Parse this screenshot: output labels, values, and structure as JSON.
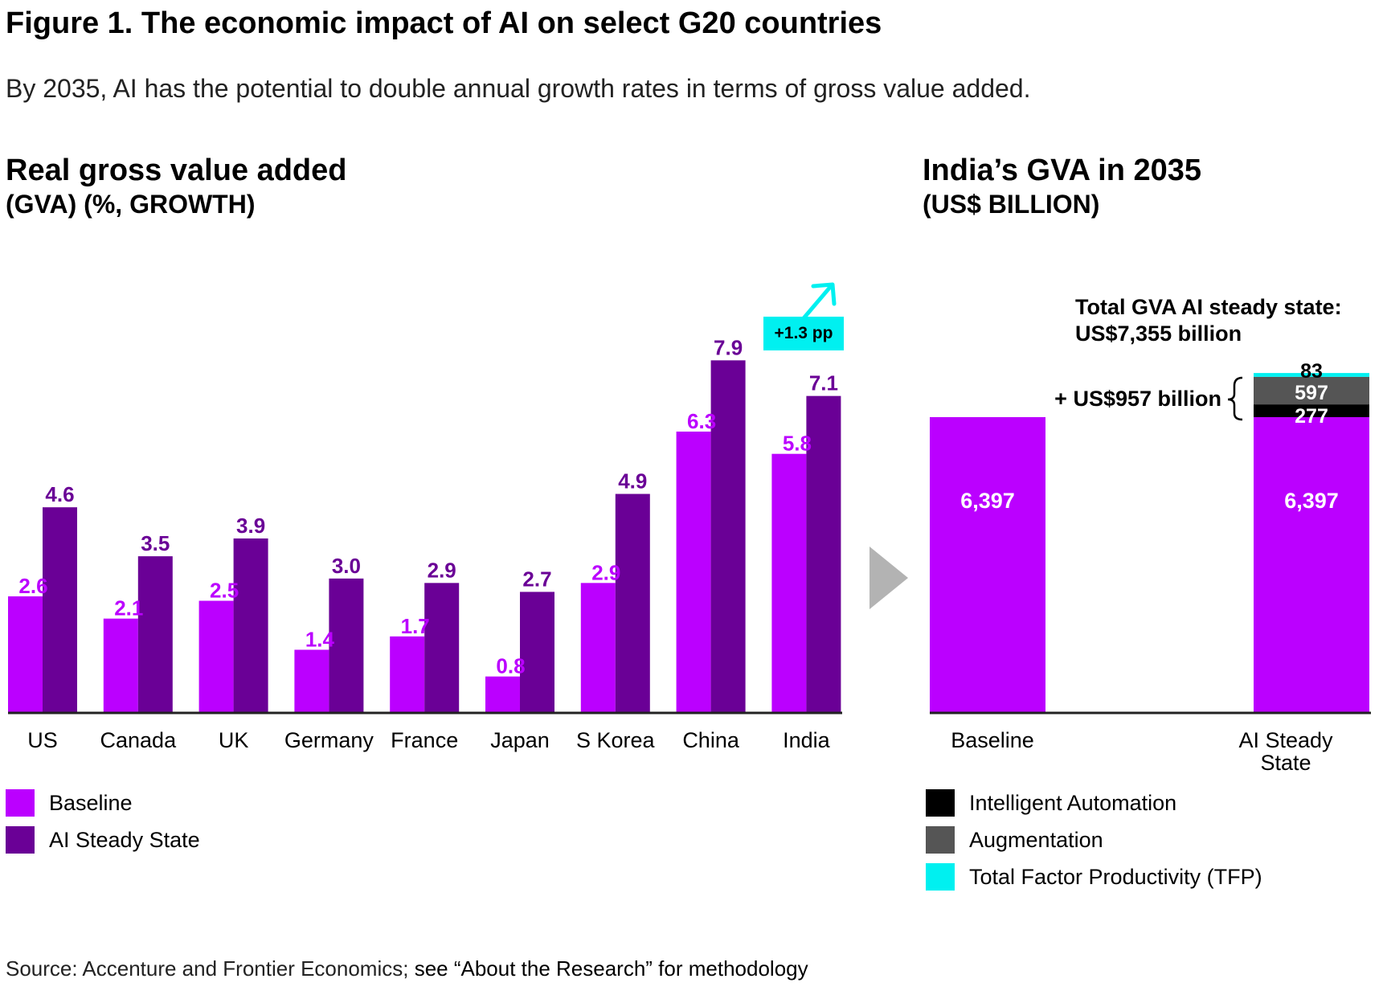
{
  "figure": {
    "title": "Figure 1. The economic impact of AI on select G20 countries",
    "subtitle": "By 2035, AI has the potential to double annual growth rates in terms of gross value added."
  },
  "colors": {
    "baseline": "#bb00ff",
    "ai_steady": "#6a0096",
    "intelligent_automation": "#000000",
    "augmentation": "#555555",
    "tfp": "#00f0f0",
    "arrow": "#b3b3b3"
  },
  "chart_data": [
    {
      "type": "bar",
      "title": "Real gross value added",
      "unit_label": "(GVA) (%, GROWTH)",
      "categories": [
        "US",
        "Canada",
        "UK",
        "Germany",
        "France",
        "Japan",
        "S Korea",
        "China",
        "India"
      ],
      "series": [
        {
          "name": "Baseline",
          "values": [
            2.6,
            2.1,
            2.5,
            1.4,
            1.7,
            0.8,
            2.9,
            6.3,
            5.8
          ]
        },
        {
          "name": "AI Steady State",
          "values": [
            4.6,
            3.5,
            3.9,
            3.0,
            2.9,
            2.7,
            4.9,
            7.9,
            7.1
          ]
        }
      ],
      "value_labels": {
        "baseline": [
          "2.6",
          "2.1",
          "2.5",
          "1.4",
          "1.7",
          "0.8",
          "2.9",
          "6.3",
          "5.8"
        ],
        "ai_steady": [
          "4.6",
          "3.5",
          "3.9",
          "3.0",
          "2.9",
          "2.7",
          "4.9",
          "7.9",
          "7.1"
        ]
      },
      "annotation": "+1.3 pp",
      "ylim": [
        0,
        8.5
      ],
      "grid": false,
      "legend": "bottom-left"
    },
    {
      "type": "bar",
      "stacked": true,
      "title": "India’s GVA in 2035",
      "unit_label": "(US$ BILLION)",
      "categories": [
        "Baseline",
        "AI Steady State"
      ],
      "category_lines": [
        [
          "Baseline"
        ],
        [
          "AI Steady",
          "State"
        ]
      ],
      "series": [
        {
          "name": "Baseline",
          "values": [
            6397,
            6397
          ],
          "label": "6,397"
        },
        {
          "name": "Intelligent Automation",
          "values": [
            0,
            277
          ],
          "label": "277"
        },
        {
          "name": "Augmentation",
          "values": [
            0,
            597
          ],
          "label": "597"
        },
        {
          "name": "Total Factor Productivity (TFP)",
          "values": [
            0,
            83
          ],
          "label": "83"
        }
      ],
      "baseline_labels": [
        "6,397",
        "6,397"
      ],
      "total_label_line1": "Total GVA AI steady state:",
      "total_label_line2": "US$7,355 billion",
      "increase_label": "+ US$957 billion",
      "ylim": [
        0,
        7355
      ],
      "grid": false,
      "legend": "bottom-right"
    }
  ],
  "legend_left": [
    "Baseline",
    "AI Steady State"
  ],
  "legend_right": [
    "Intelligent Automation",
    "Augmentation",
    "Total Factor Productivity (TFP)"
  ],
  "source": {
    "part1": "Source: Accenture and Frontier Economics;",
    "part2": " see “About the Research” for methodology"
  }
}
